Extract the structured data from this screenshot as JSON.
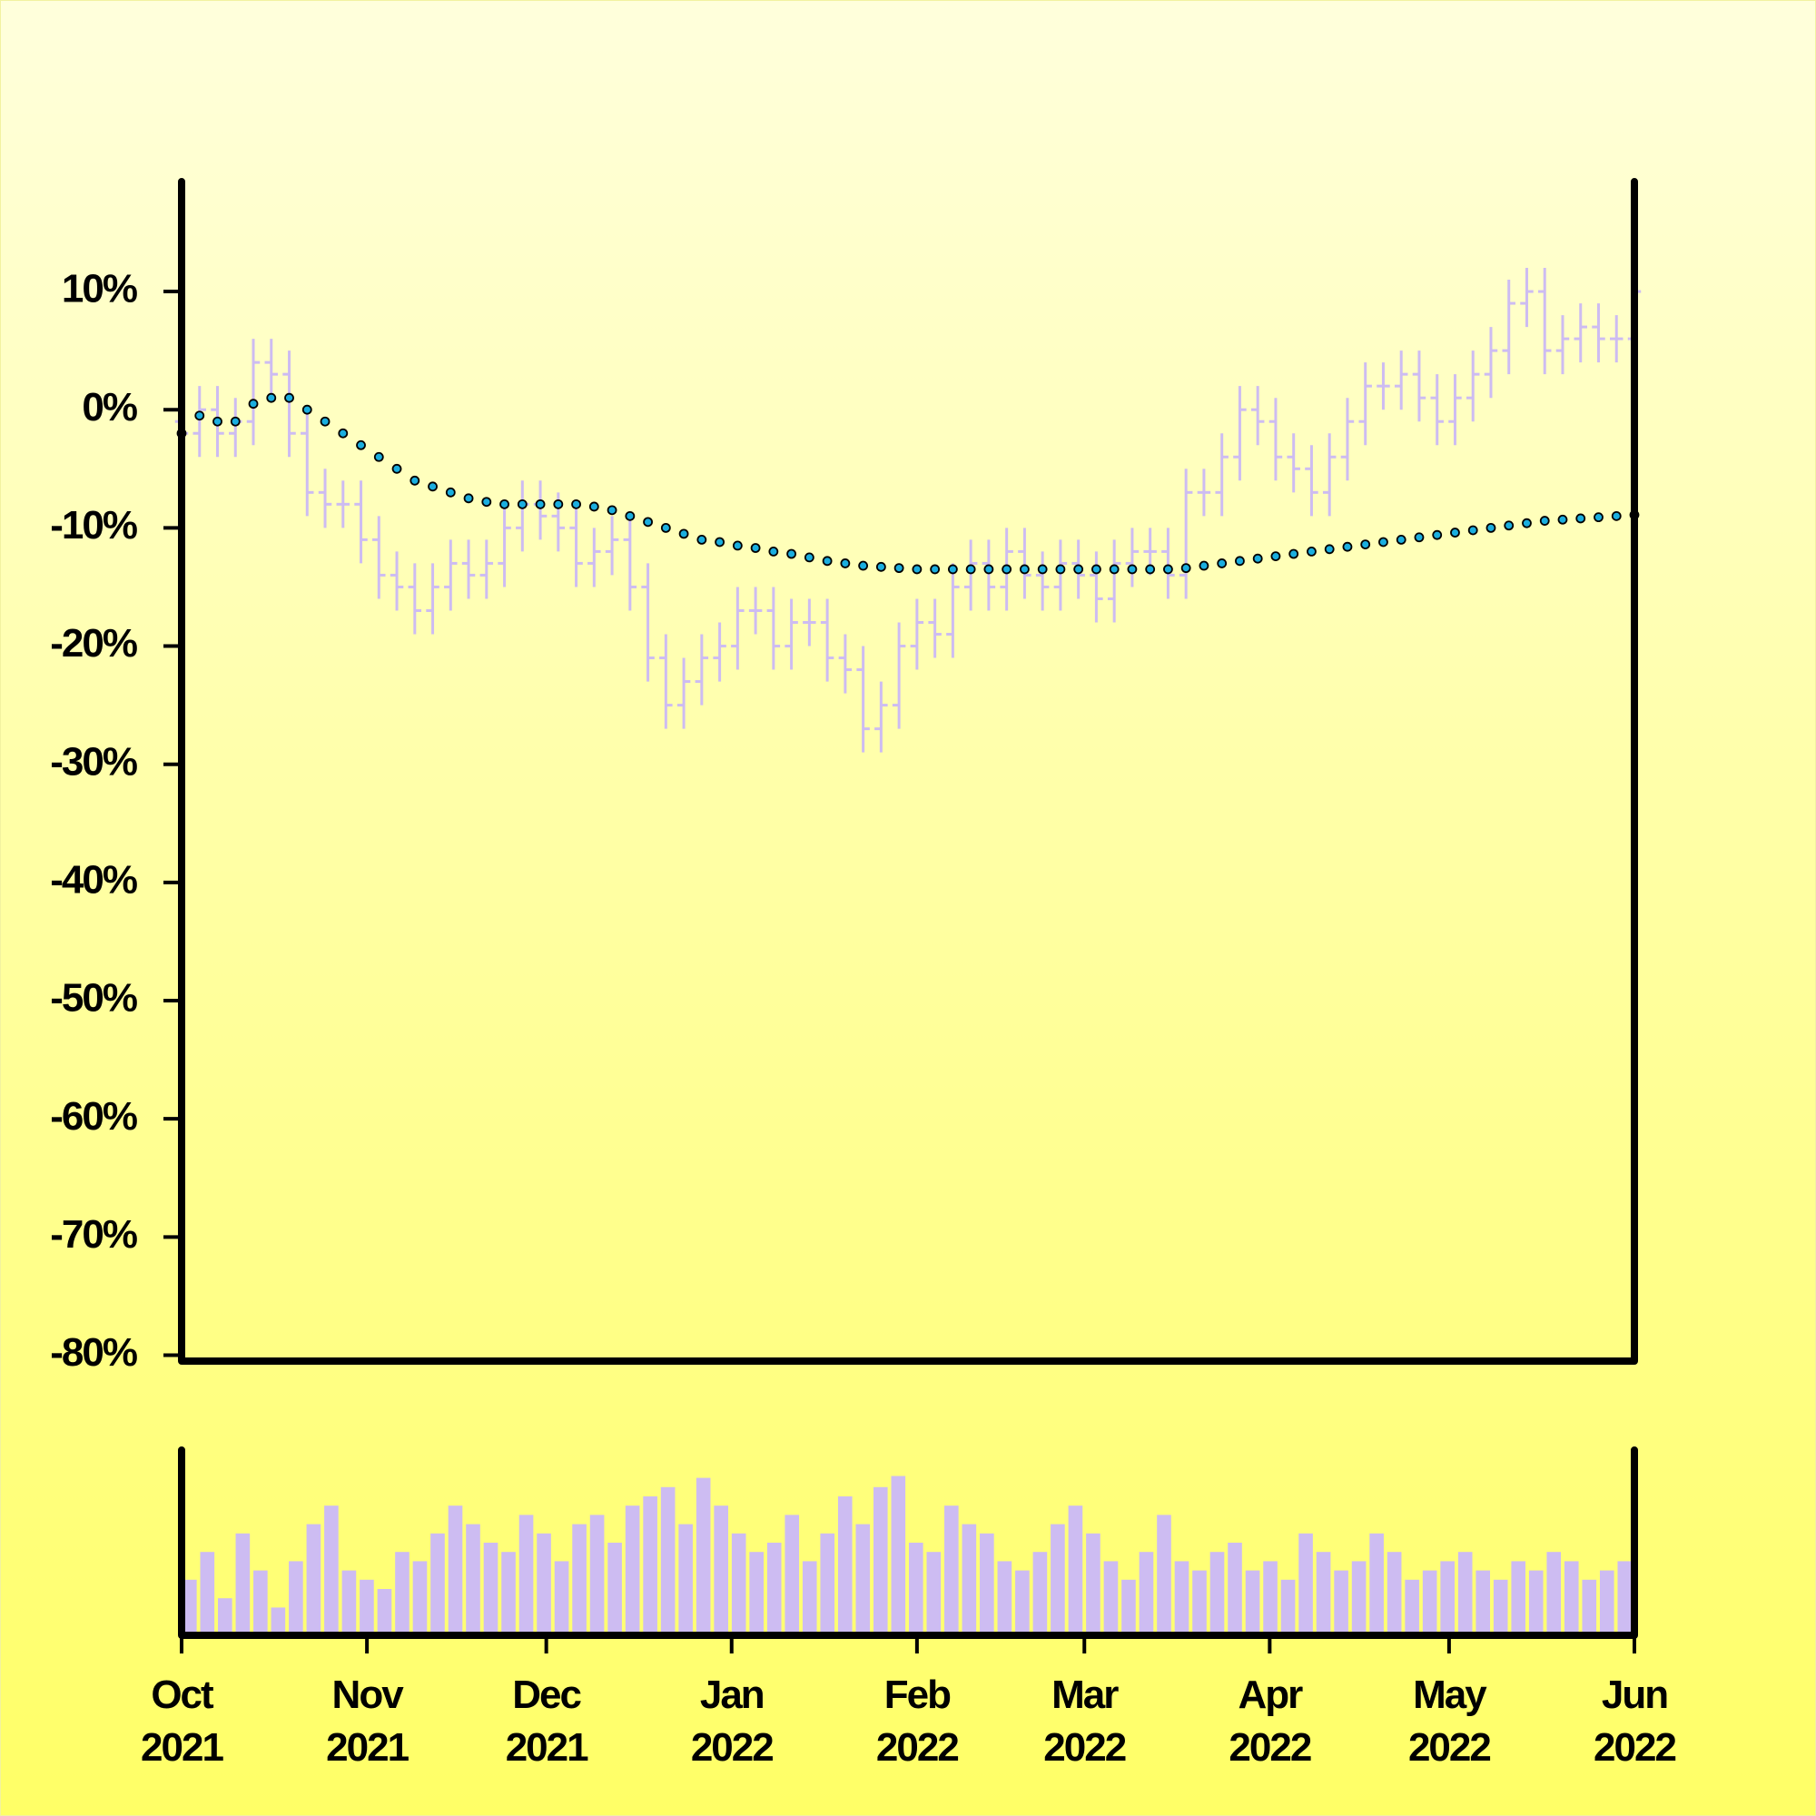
{
  "chart_data": [
    {
      "type": "ohlc",
      "x": [
        0,
        3,
        6,
        9,
        12,
        15,
        18,
        21,
        24,
        27,
        30,
        33,
        36,
        39,
        42,
        45,
        48,
        51,
        54,
        57,
        60,
        63,
        66,
        69,
        72,
        75,
        78,
        81,
        84,
        87,
        90,
        93,
        96,
        99,
        102,
        105,
        108,
        111,
        114,
        117,
        120,
        123,
        126,
        129,
        132,
        135,
        138,
        141,
        144,
        147,
        150,
        153,
        156,
        159,
        162,
        165,
        168,
        171,
        174,
        177,
        180,
        183,
        186,
        189,
        192,
        195,
        198,
        201,
        204,
        207,
        210,
        213,
        216,
        219,
        222,
        225,
        228,
        231,
        234,
        237,
        240,
        243
      ],
      "open": [
        -1,
        -2,
        0,
        -2,
        -1,
        4,
        3,
        -2,
        -7,
        -8,
        -8,
        -11,
        -14,
        -15,
        -17,
        -15,
        -13,
        -14,
        -13,
        -10,
        -8,
        -9,
        -10,
        -13,
        -12,
        -11,
        -15,
        -21,
        -25,
        -23,
        -21,
        -20,
        -17,
        -17,
        -20,
        -18,
        -18,
        -21,
        -22,
        -27,
        -25,
        -20,
        -18,
        -19,
        -15,
        -13,
        -15,
        -12,
        -14,
        -15,
        -13,
        -14,
        -16,
        -13,
        -12,
        -12,
        -14,
        -7,
        -7,
        -4,
        0,
        -1,
        -4,
        -5,
        -7,
        -4,
        -1,
        2,
        2,
        3,
        1,
        -1,
        1,
        3,
        5,
        9,
        10,
        5,
        6,
        7,
        6,
        6
      ],
      "high": [
        1,
        2,
        2,
        1,
        6,
        6,
        5,
        0,
        -5,
        -6,
        -6,
        -9,
        -12,
        -13,
        -13,
        -11,
        -11,
        -11,
        -8,
        -6,
        -6,
        -7,
        -8,
        -10,
        -9,
        -9,
        -13,
        -19,
        -21,
        -19,
        -18,
        -15,
        -15,
        -15,
        -16,
        -16,
        -16,
        -19,
        -20,
        -23,
        -18,
        -16,
        -16,
        -13,
        -11,
        -11,
        -10,
        -10,
        -12,
        -11,
        -11,
        -12,
        -11,
        -10,
        -10,
        -10,
        -5,
        -5,
        -2,
        2,
        2,
        1,
        -2,
        -3,
        -2,
        1,
        4,
        4,
        5,
        5,
        3,
        3,
        5,
        7,
        11,
        12,
        12,
        8,
        9,
        9,
        8,
        12
      ],
      "low": [
        -4,
        -4,
        -4,
        -4,
        -3,
        1,
        -4,
        -9,
        -10,
        -10,
        -13,
        -16,
        -17,
        -19,
        -19,
        -17,
        -16,
        -16,
        -15,
        -12,
        -11,
        -12,
        -15,
        -15,
        -14,
        -17,
        -23,
        -27,
        -27,
        -25,
        -23,
        -22,
        -19,
        -22,
        -22,
        -20,
        -23,
        -24,
        -29,
        -29,
        -27,
        -22,
        -21,
        -21,
        -17,
        -17,
        -17,
        -16,
        -17,
        -17,
        -16,
        -18,
        -18,
        -15,
        -14,
        -16,
        -16,
        -9,
        -9,
        -6,
        -3,
        -6,
        -7,
        -9,
        -9,
        -6,
        -3,
        0,
        0,
        -1,
        -3,
        -3,
        -1,
        1,
        3,
        7,
        3,
        3,
        4,
        4,
        4,
        4
      ],
      "close": [
        -2,
        0,
        -2,
        -1,
        4,
        3,
        -2,
        -7,
        -8,
        -8,
        -11,
        -14,
        -15,
        -17,
        -15,
        -13,
        -14,
        -13,
        -10,
        -8,
        -9,
        -10,
        -13,
        -12,
        -11,
        -15,
        -21,
        -25,
        -23,
        -21,
        -20,
        -17,
        -17,
        -20,
        -18,
        -18,
        -21,
        -22,
        -27,
        -25,
        -20,
        -18,
        -19,
        -15,
        -13,
        -15,
        -12,
        -14,
        -15,
        -13,
        -14,
        -16,
        -13,
        -12,
        -12,
        -14,
        -7,
        -7,
        -4,
        0,
        -1,
        -4,
        -5,
        -7,
        -4,
        -1,
        2,
        2,
        3,
        1,
        -1,
        1,
        3,
        5,
        9,
        10,
        5,
        6,
        7,
        6,
        6,
        10
      ],
      "color": "#cdbcf2",
      "ma": {
        "color": "#1aaedf",
        "values": [
          -2,
          -0.5,
          -1,
          -1,
          0.5,
          1,
          1,
          0,
          -1,
          -2,
          -3,
          -4,
          -5,
          -6,
          -6.5,
          -7,
          -7.5,
          -7.8,
          -8,
          -8,
          -8,
          -8,
          -8,
          -8.2,
          -8.5,
          -9,
          -9.5,
          -10,
          -10.5,
          -11,
          -11.2,
          -11.5,
          -11.7,
          -12,
          -12.2,
          -12.5,
          -12.8,
          -13,
          -13.2,
          -13.3,
          -13.4,
          -13.5,
          -13.5,
          -13.5,
          -13.5,
          -13.5,
          -13.5,
          -13.5,
          -13.5,
          -13.5,
          -13.5,
          -13.5,
          -13.5,
          -13.5,
          -13.5,
          -13.5,
          -13.4,
          -13.2,
          -13,
          -12.8,
          -12.6,
          -12.4,
          -12.2,
          -12,
          -11.8,
          -11.6,
          -11.4,
          -11.2,
          -11,
          -10.8,
          -10.6,
          -10.4,
          -10.2,
          -10,
          -9.8,
          -9.6,
          -9.4,
          -9.3,
          -9.2,
          -9.1,
          -9,
          -8.9
        ]
      },
      "xlim": [
        0,
        243
      ],
      "ylim": [
        -80.5,
        19.3
      ],
      "yticks": [
        {
          "value": 10,
          "label": "10%"
        },
        {
          "value": 0,
          "label": "0%"
        },
        {
          "value": -10,
          "label": "-10%"
        },
        {
          "value": -20,
          "label": "-20%"
        },
        {
          "value": -30,
          "label": "-30%"
        },
        {
          "value": -40,
          "label": "-40%"
        },
        {
          "value": -50,
          "label": "-50%"
        },
        {
          "value": -60,
          "label": "-60%"
        },
        {
          "value": -70,
          "label": "-70%"
        },
        {
          "value": -80,
          "label": "-80%"
        }
      ]
    },
    {
      "type": "bar",
      "values": [
        30,
        45,
        20,
        55,
        35,
        15,
        40,
        60,
        70,
        35,
        30,
        25,
        45,
        40,
        55,
        70,
        60,
        50,
        45,
        65,
        55,
        40,
        60,
        65,
        50,
        70,
        75,
        80,
        60,
        85,
        70,
        55,
        45,
        50,
        65,
        40,
        55,
        75,
        60,
        80,
        86,
        50,
        45,
        70,
        60,
        55,
        40,
        35,
        45,
        60,
        70,
        55,
        40,
        30,
        45,
        65,
        40,
        35,
        45,
        50,
        35,
        40,
        30,
        55,
        45,
        35,
        40,
        55,
        45,
        30,
        35,
        40,
        45,
        35,
        30,
        40,
        35,
        45,
        40,
        30,
        35,
        40
      ],
      "color": "#cdbcf2",
      "xlim": [
        0,
        243
      ],
      "ylim": [
        0,
        100
      ],
      "xticks": [
        {
          "value": 0,
          "label": "Oct 2021"
        },
        {
          "value": 31,
          "label": "Nov 2021"
        },
        {
          "value": 61,
          "label": "Dec 2021"
        },
        {
          "value": 92,
          "label": "Jan 2022"
        },
        {
          "value": 123,
          "label": "Feb 2022"
        },
        {
          "value": 151,
          "label": "Mar 2022"
        },
        {
          "value": 182,
          "label": "Apr 2022"
        },
        {
          "value": 212,
          "label": "May 2022"
        },
        {
          "value": 243,
          "label": "Jun 2022"
        }
      ]
    }
  ]
}
